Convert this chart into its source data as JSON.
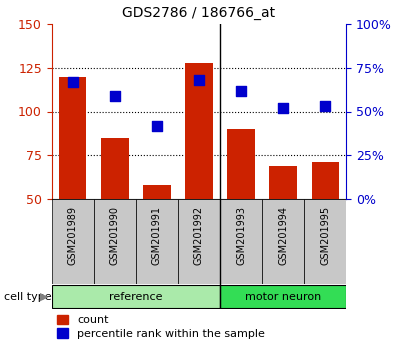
{
  "title": "GDS2786 / 186766_at",
  "samples": [
    "GSM201989",
    "GSM201990",
    "GSM201991",
    "GSM201992",
    "GSM201993",
    "GSM201994",
    "GSM201995"
  ],
  "counts": [
    120,
    85,
    58,
    128,
    90,
    69,
    71
  ],
  "percentiles": [
    117,
    109,
    92,
    118,
    112,
    102,
    103
  ],
  "ylim_left": [
    50,
    150
  ],
  "ylim_right": [
    0,
    100
  ],
  "yticks_left": [
    50,
    75,
    100,
    125,
    150
  ],
  "yticks_right": [
    0,
    25,
    50,
    75,
    100
  ],
  "ytick_labels_right": [
    "0%",
    "25%",
    "50%",
    "75%",
    "100%"
  ],
  "groups": [
    {
      "label": "reference",
      "indices": [
        0,
        1,
        2,
        3
      ],
      "color": "#AAEAAA"
    },
    {
      "label": "motor neuron",
      "indices": [
        4,
        5,
        6
      ],
      "color": "#33DD55"
    }
  ],
  "cell_type_label": "cell type",
  "bar_color": "#CC2200",
  "dot_color": "#0000CC",
  "bar_bottom": 50,
  "tick_label_color_left": "#CC2200",
  "tick_label_color_right": "#0000CC",
  "legend_count_label": "count",
  "legend_percentile_label": "percentile rank within the sample",
  "separator_index": 3.5,
  "bar_width": 0.65,
  "dot_size": 50,
  "xlabel_gray_color": "#C8C8C8",
  "group_separator_color": "#000000",
  "dotted_line_color": "#000000"
}
